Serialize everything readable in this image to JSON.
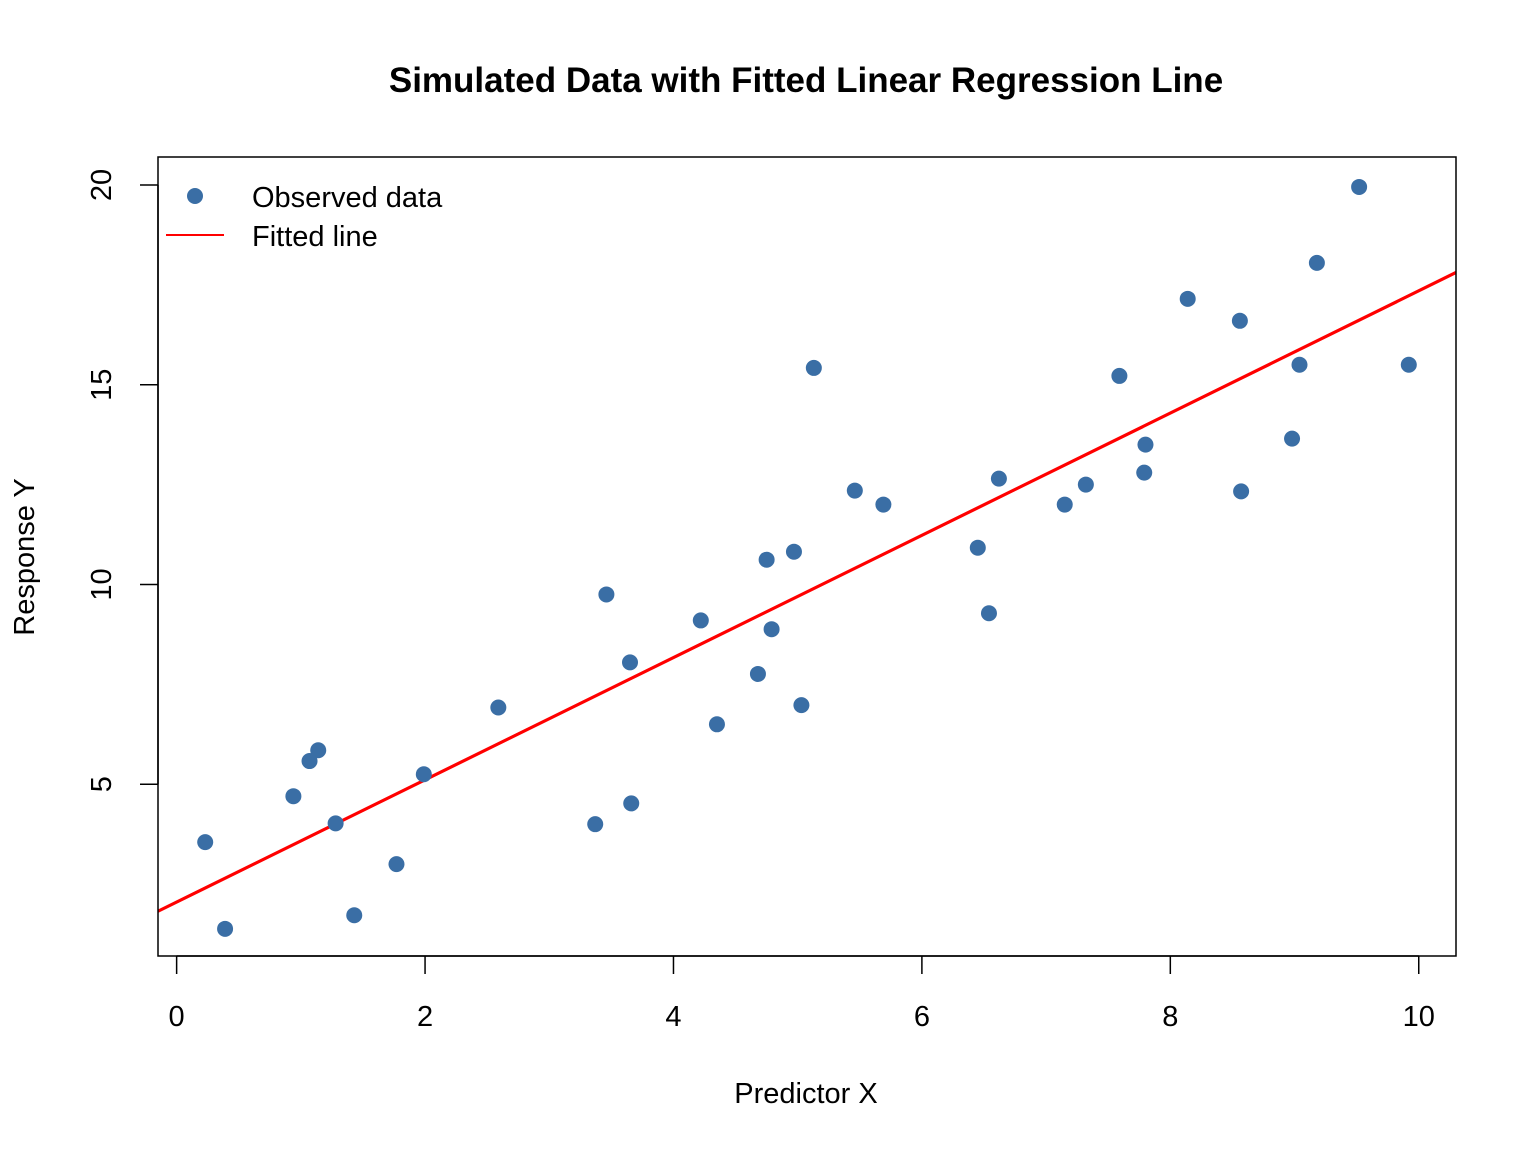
{
  "chart_data": {
    "type": "scatter",
    "title": "Simulated Data with Fitted Linear Regression Line",
    "xlabel": "Predictor X",
    "ylabel": "Response Y",
    "xlim": [
      -0.15,
      10.3
    ],
    "ylim": [
      0.7,
      20.7
    ],
    "x_ticks": [
      0,
      2,
      4,
      6,
      8,
      10
    ],
    "y_ticks": [
      5,
      10,
      15,
      20
    ],
    "grid": false,
    "legend_position": "top-left",
    "series": [
      {
        "name": "Observed data",
        "kind": "points",
        "color": "#3A6EA5",
        "points": [
          [
            0.23,
            3.55
          ],
          [
            0.39,
            1.38
          ],
          [
            0.94,
            4.7
          ],
          [
            1.07,
            5.58
          ],
          [
            1.14,
            5.85
          ],
          [
            1.28,
            4.02
          ],
          [
            1.43,
            1.72
          ],
          [
            1.77,
            3.0
          ],
          [
            1.99,
            5.25
          ],
          [
            2.59,
            6.92
          ],
          [
            3.37,
            4.0
          ],
          [
            3.46,
            9.75
          ],
          [
            3.65,
            8.05
          ],
          [
            3.66,
            4.52
          ],
          [
            4.22,
            9.1
          ],
          [
            4.35,
            6.5
          ],
          [
            4.68,
            7.76
          ],
          [
            4.75,
            10.62
          ],
          [
            4.79,
            8.88
          ],
          [
            4.97,
            10.82
          ],
          [
            5.03,
            6.98
          ],
          [
            5.13,
            15.42
          ],
          [
            5.46,
            12.35
          ],
          [
            5.69,
            12.0
          ],
          [
            6.45,
            10.92
          ],
          [
            6.54,
            9.28
          ],
          [
            6.62,
            12.65
          ],
          [
            7.15,
            12.0
          ],
          [
            7.32,
            12.5
          ],
          [
            7.59,
            15.22
          ],
          [
            7.79,
            12.8
          ],
          [
            7.8,
            13.5
          ],
          [
            8.14,
            17.15
          ],
          [
            8.56,
            16.6
          ],
          [
            8.57,
            12.33
          ],
          [
            8.98,
            13.65
          ],
          [
            9.04,
            15.5
          ],
          [
            9.18,
            18.05
          ],
          [
            9.52,
            19.95
          ],
          [
            9.92,
            15.5
          ]
        ]
      },
      {
        "name": "Fitted line",
        "kind": "line",
        "color": "#FF0000",
        "intercept": 2.05,
        "slope": 1.53
      }
    ]
  }
}
